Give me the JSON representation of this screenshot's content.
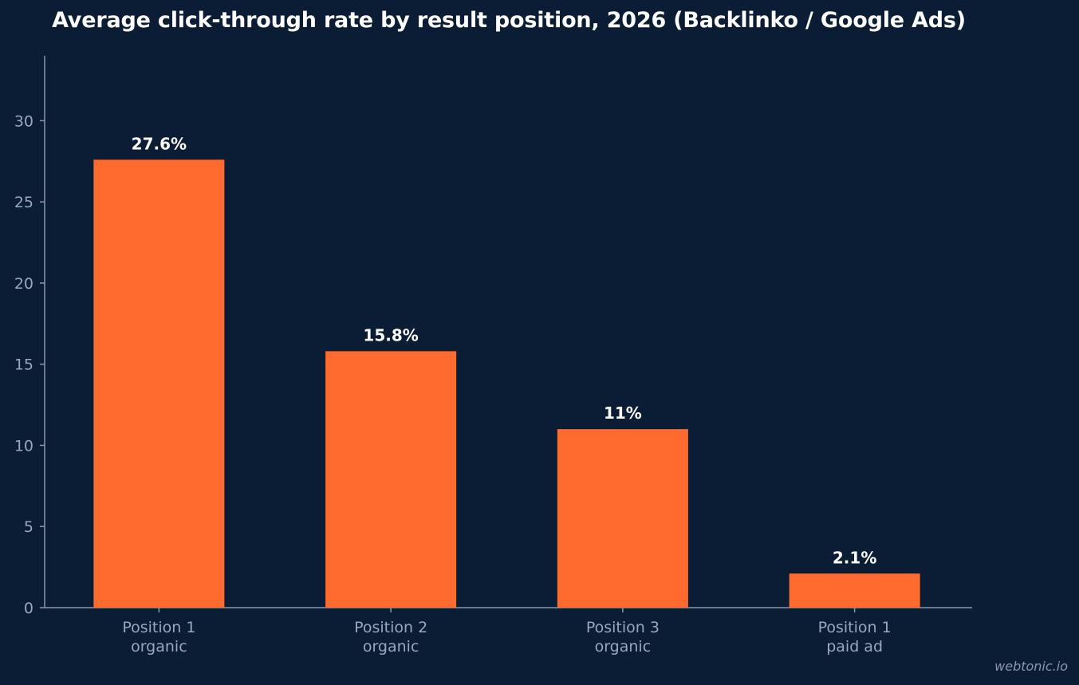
{
  "chart_data": {
    "type": "bar",
    "title": "Average click-through rate by result position, 2026 (Backlinko / Google Ads)",
    "categories": [
      [
        "Position 1",
        "organic"
      ],
      [
        "Position 2",
        "organic"
      ],
      [
        "Position 3",
        "organic"
      ],
      [
        "Position 1",
        "paid ad"
      ]
    ],
    "values": [
      27.6,
      15.8,
      11,
      2.1
    ],
    "value_labels": [
      "27.6%",
      "15.8%",
      "11%",
      "2.1%"
    ],
    "xlabel": "",
    "ylabel": "",
    "ylim": [
      0,
      34
    ],
    "yticks": [
      0,
      5,
      10,
      15,
      20,
      25,
      30
    ],
    "grid": false,
    "legend": "none"
  },
  "colors": {
    "background": "#0b1c35",
    "bar": "#ff6b2e",
    "axis": "#8a97ad",
    "tick_text": "#9aa7bd",
    "title_text": "#ffffff"
  },
  "watermark": "webtonic.io"
}
